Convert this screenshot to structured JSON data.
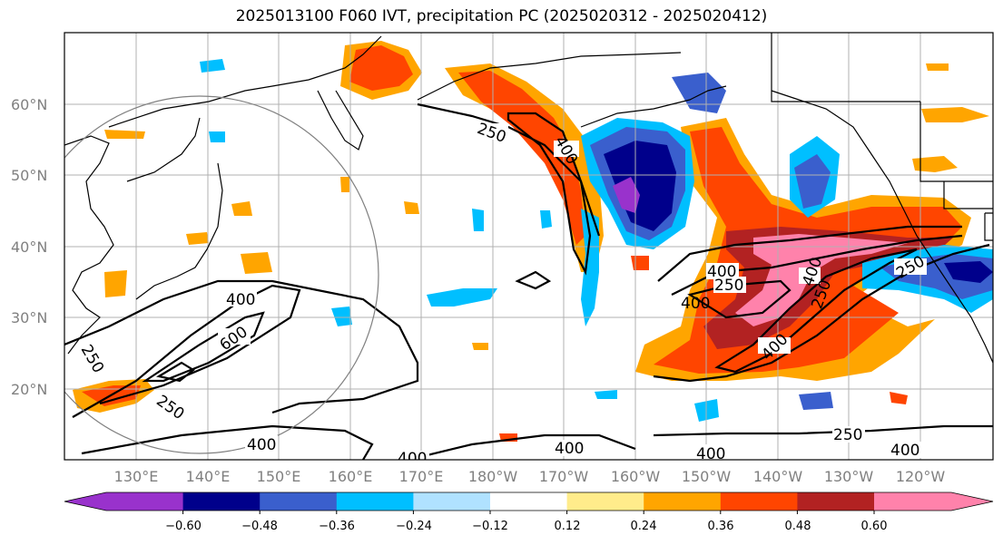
{
  "title": "2025013100 F060 IVT, precipitation PC (2025020312 - 2025020412)",
  "lat_labels": [
    "60°N",
    "50°N",
    "40°N",
    "30°N",
    "20°N"
  ],
  "lon_labels": [
    "130°E",
    "140°E",
    "150°E",
    "160°E",
    "170°E",
    "180°W",
    "170°W",
    "160°W",
    "150°W",
    "140°W",
    "130°W",
    "120°W"
  ],
  "colorbar": {
    "ticks": [
      "−0.60",
      "−0.48",
      "−0.36",
      "−0.24",
      "−0.12",
      "0.12",
      "0.24",
      "0.36",
      "0.48",
      "0.60"
    ],
    "colors": [
      "#9932cc",
      "#00008b",
      "#3a5fcd",
      "#00bfff",
      "#b0e2ff",
      "#ffffff",
      "#ffec8b",
      "#ffa500",
      "#ff4500",
      "#b22222",
      "#ff82ab"
    ]
  },
  "contour_labels": [
    "250",
    "400",
    "400",
    "250",
    "600",
    "250",
    "400",
    "400",
    "400",
    "400",
    "250",
    "400",
    "250",
    "400",
    "400",
    "250",
    "400",
    "250",
    "400"
  ],
  "colors": {
    "frame": "#000000",
    "grid": "#b0b0b0",
    "coast": "#000000",
    "circle": "#808080"
  }
}
